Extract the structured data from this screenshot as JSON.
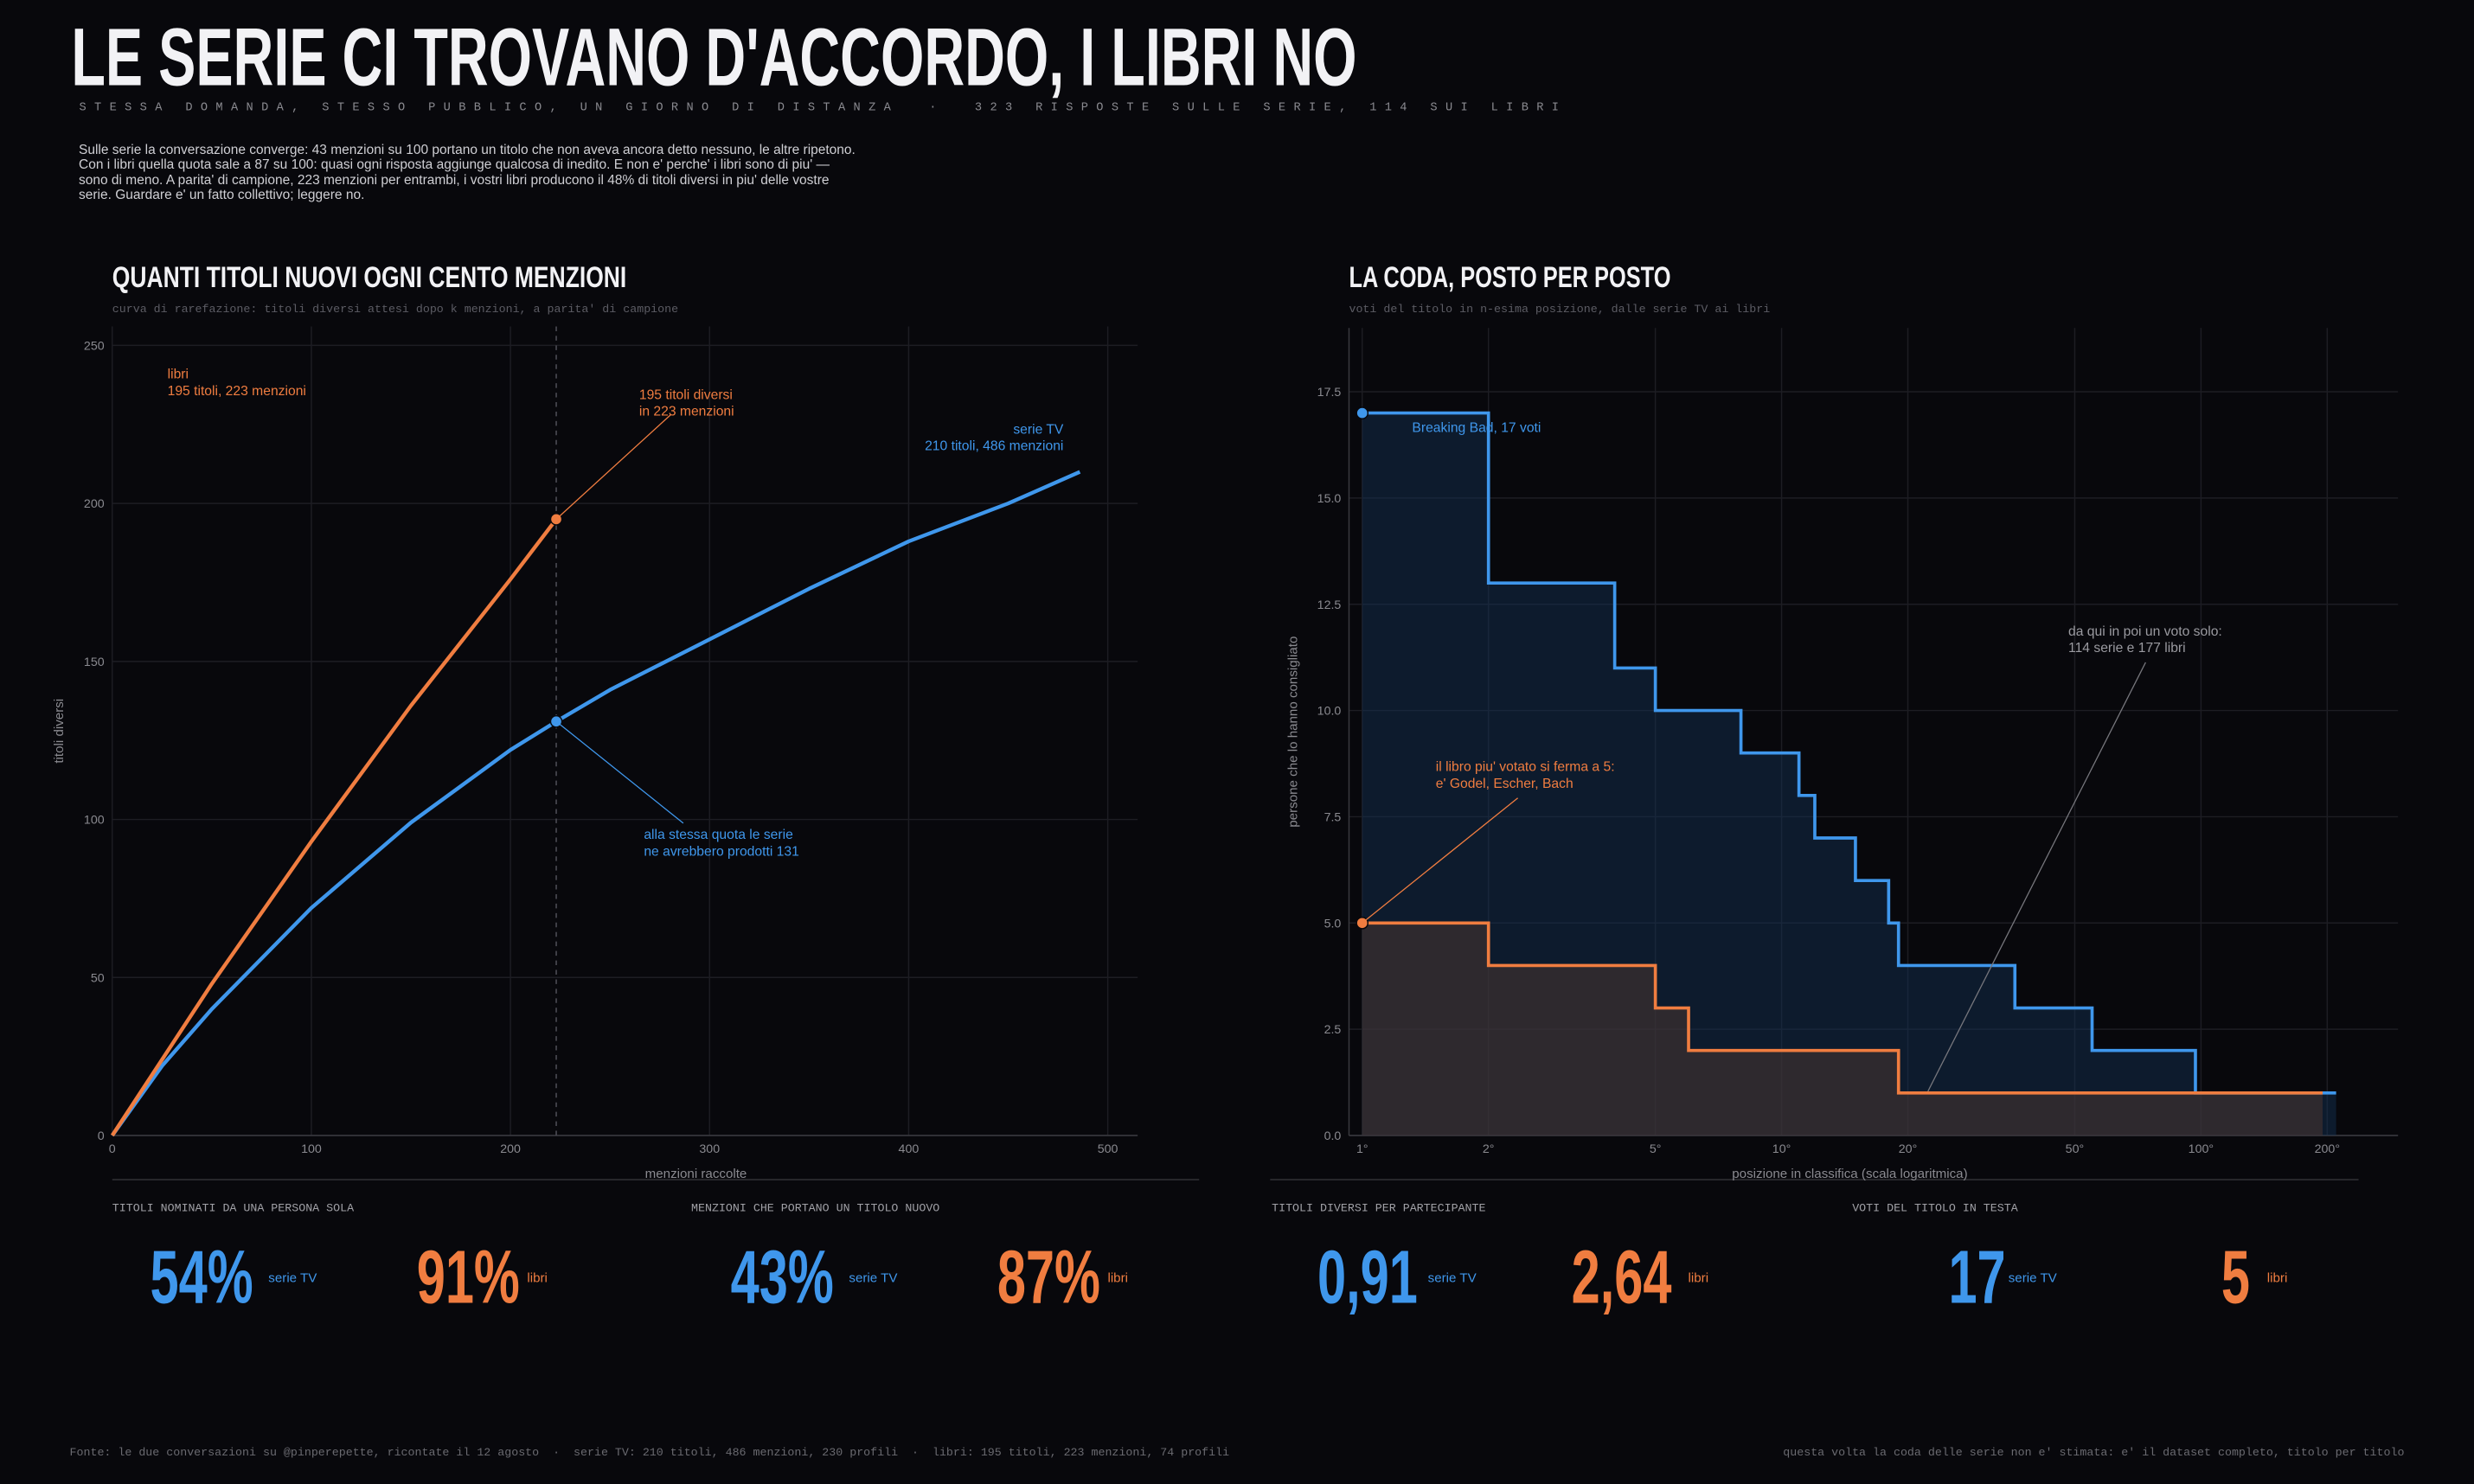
{
  "header": {
    "title": "LE SERIE CI TROVANO D'ACCORDO, I LIBRI NO",
    "subtitle": "STESSA DOMANDA, STESSO PUBBLICO, UN GIORNO DI DISTANZA  ·  323 RISPOSTE SULLE SERIE, 114 SUI LIBRI",
    "intro": "Sulle serie la conversazione converge: 43 menzioni su 100 portano un titolo che non aveva ancora detto nessuno, le altre ripetono. Con i libri quella quota sale a 87 su 100: quasi ogni risposta aggiunge qualcosa di inedito. E non e' perche' i libri sono di piu' — sono di meno. A parita' di campione, 223 menzioni per entrambi, i vostri libri producono il 48% di titoli diversi in piu' delle vostre serie. Guardare e' un fatto collettivo; leggere no."
  },
  "chart_data": [
    {
      "type": "line",
      "title": "QUANTI TITOLI NUOVI OGNI CENTO MENZIONI",
      "subtitle": "curva di rarefazione: titoli diversi attesi dopo k menzioni, a parita' di campione",
      "x_label": "menzioni raccolte",
      "y_label": "titoli diversi",
      "xlim": [
        0,
        515
      ],
      "ylim": [
        0,
        256
      ],
      "xticks": [
        0,
        100,
        200,
        300,
        400,
        500
      ],
      "yticks": [
        0,
        50,
        100,
        150,
        200,
        250
      ],
      "grid": true,
      "reference_x": 223,
      "series": [
        {
          "color": "#3f97ec",
          "x": [
            0,
            25,
            50,
            100,
            150,
            200,
            223,
            250,
            300,
            350,
            400,
            450,
            486
          ],
          "values": [
            0,
            22,
            40,
            72,
            99,
            122,
            131,
            141,
            157,
            173,
            188,
            200,
            210
          ]
        },
        {
          "color": "#f07d40",
          "x": [
            0,
            25,
            50,
            100,
            150,
            200,
            223
          ],
          "values": [
            0,
            24,
            48,
            93,
            136,
            176,
            195
          ]
        }
      ],
      "annotations": [
        {
          "text": [
            "libri",
            "195 titoli, 223 menzioni"
          ]
        },
        {
          "text": [
            "195 titoli diversi",
            "in 223 menzioni"
          ]
        },
        {
          "text": [
            "serie TV",
            "210 titoli, 486 menzioni"
          ]
        },
        {
          "text": [
            "alla stessa quota le serie",
            "ne avrebbero prodotti 131"
          ]
        }
      ]
    },
    {
      "type": "step",
      "title": "LA CODA, POSTO PER POSTO",
      "subtitle": "voti del titolo in n-esima posizione, dalle serie TV ai libri",
      "x_label": "posizione in classifica (scala logaritmica)",
      "y_label": "persone che lo hanno consigliato",
      "log_x": true,
      "xlim": [
        0.93,
        295
      ],
      "ylim": [
        0,
        19
      ],
      "xticks": [
        {
          "value": 1,
          "label": "1°"
        },
        {
          "value": 2,
          "label": "2°"
        },
        {
          "value": 5,
          "label": "5°"
        },
        {
          "value": 10,
          "label": "10°"
        },
        {
          "value": 20,
          "label": "20°"
        },
        {
          "value": 50,
          "label": "50°"
        },
        {
          "value": 100,
          "label": "100°"
        },
        {
          "value": 200,
          "label": "200°"
        }
      ],
      "yticks": [
        {
          "value": 0,
          "label": "0.0"
        },
        2.5,
        {
          "value": 5,
          "label": "5.0"
        },
        7.5,
        {
          "value": 10,
          "label": "10.0"
        },
        12.5,
        {
          "value": 15,
          "label": "15.0"
        },
        17.5
      ],
      "grid": true,
      "series": [
        {
          "color": "#3f97ec",
          "x": [
            1,
            2,
            4,
            5,
            8,
            11,
            12,
            15,
            18,
            19,
            36,
            55,
            97,
            210
          ],
          "values": [
            17,
            13,
            11,
            10,
            9,
            8,
            7,
            6,
            5,
            4,
            3,
            2,
            1,
            1
          ]
        },
        {
          "color": "#f07d40",
          "x": [
            1,
            2,
            5,
            6,
            19,
            195
          ],
          "values": [
            5,
            4,
            3,
            2,
            1,
            1
          ]
        }
      ],
      "annotations": [
        {
          "text": [
            "Breaking Bad, 17 voti"
          ]
        },
        {
          "text": [
            "il libro piu' votato si ferma a 5:",
            "e' Godel, Escher, Bach"
          ]
        },
        {
          "text": [
            "da qui in poi un voto solo:",
            "114 serie e 177 libri"
          ]
        }
      ]
    }
  ],
  "stats": [
    {
      "label": "TITOLI NOMINATI DA UNA PERSONA SOLA",
      "items": [
        {
          "value": "54%",
          "name": "serie TV"
        },
        {
          "value": "91%",
          "name": "libri"
        }
      ]
    },
    {
      "label": "MENZIONI CHE PORTANO UN TITOLO NUOVO",
      "items": [
        {
          "value": "43%",
          "name": "serie TV"
        },
        {
          "value": "87%",
          "name": "libri"
        }
      ]
    },
    {
      "label": "TITOLI DIVERSI PER PARTECIPANTE",
      "items": [
        {
          "value": "0,91",
          "name": "serie TV"
        },
        {
          "value": "2,64",
          "name": "libri"
        }
      ]
    },
    {
      "label": "VOTI DEL TITOLO IN TESTA",
      "items": [
        {
          "value": "17",
          "name": "serie TV"
        },
        {
          "value": "5",
          "name": "libri"
        }
      ]
    }
  ],
  "footer": {
    "left": "Fonte: le due conversazioni su @pinperepette, ricontate il 12 agosto  ·  serie TV: 210 titoli, 486 menzioni, 230 profili  ·  libri: 195 titoli, 223 menzioni, 74 profili",
    "right": "questa volta la coda delle serie non e' stimata: e' il dataset completo, titolo per titolo"
  }
}
